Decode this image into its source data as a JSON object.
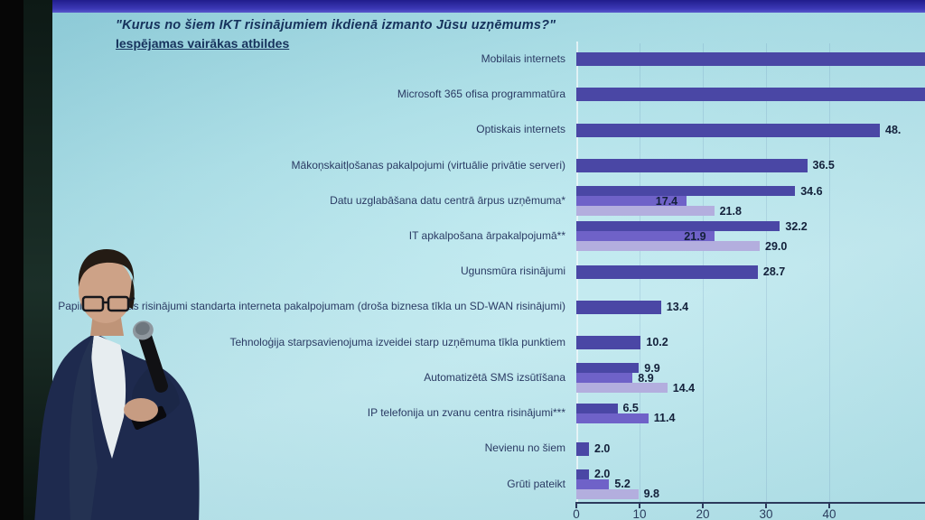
{
  "slide": {
    "title": "\"Kurus no šiem IKT risinājumiem ikdienā izmanto Jūsu uzņēmums?\"",
    "subtitle": "Iespējamas vairākas atbildes"
  },
  "chart_data": {
    "type": "bar",
    "orientation": "horizontal",
    "title": "\"Kurus no šiem IKT risinājumiem ikdienā izmanto Jūsu uzņēmums?\"",
    "subtitle": "Iespējamas vairākas atbildes",
    "xlim": [
      0,
      50
    ],
    "x_ticks": [
      0,
      10,
      20,
      30,
      40
    ],
    "legend": "none visible",
    "grid": "faint vertical lines at ticks",
    "series_colors": {
      "dark": "#4a47a5",
      "medium": "#6f62c8",
      "light": "#b3aede"
    },
    "rows": [
      {
        "label": "Mobilais internets",
        "bars": [
          {
            "series": "dark",
            "value": null,
            "display": "",
            "clipped_offscreen": true
          }
        ]
      },
      {
        "label": "Microsoft 365 ofisa programmatūra",
        "bars": [
          {
            "series": "dark",
            "value": null,
            "display": "",
            "clipped_offscreen": true
          }
        ]
      },
      {
        "label": "Optiskais internets",
        "bars": [
          {
            "series": "dark",
            "value": 48,
            "display": "48."
          }
        ]
      },
      {
        "label": "Mākoņskaitļošanas pakalpojumi (virtuālie privātie serveri)",
        "bars": [
          {
            "series": "dark",
            "value": 36.5,
            "display": "36.5"
          }
        ]
      },
      {
        "label": "Datu uzglabāšana datu centrā ārpus uzņēmuma*",
        "bars": [
          {
            "series": "dark",
            "value": 34.6,
            "display": "34.6"
          },
          {
            "series": "medium",
            "value": 17.4,
            "display": "17.4",
            "label_on_bar": true
          },
          {
            "series": "light",
            "value": 21.8,
            "display": "21.8"
          }
        ]
      },
      {
        "label": "IT apkalpošana ārpakalpojumā**",
        "bars": [
          {
            "series": "dark",
            "value": 32.2,
            "display": "32.2"
          },
          {
            "series": "medium",
            "value": 21.9,
            "display": "21.9",
            "label_on_bar": true
          },
          {
            "series": "light",
            "value": 29.0,
            "display": "29.0"
          }
        ]
      },
      {
        "label": "Ugunsmūra risinājumi",
        "bars": [
          {
            "series": "dark",
            "value": 28.7,
            "display": "28.7"
          }
        ]
      },
      {
        "label": "Papildu drošības risinājumi standarta interneta pakalpojumam (droša biznesa tīkla un SD-WAN risinājumi)",
        "bars": [
          {
            "series": "dark",
            "value": 13.4,
            "display": "13.4"
          }
        ]
      },
      {
        "label": "Tehnoloģija starpsavienojuma izveidei starp uzņēmuma tīkla punktiem",
        "bars": [
          {
            "series": "dark",
            "value": 10.2,
            "display": "10.2"
          }
        ]
      },
      {
        "label": "Automatizētā SMS izsūtīšana",
        "bars": [
          {
            "series": "dark",
            "value": 9.9,
            "display": "9.9"
          },
          {
            "series": "medium",
            "value": 8.9,
            "display": "8.9"
          },
          {
            "series": "light",
            "value": 14.4,
            "display": "14.4"
          }
        ]
      },
      {
        "label": "IP telefonija un zvanu centra risinājumi***",
        "bars": [
          {
            "series": "dark",
            "value": 6.5,
            "display": "6.5"
          },
          {
            "series": "medium",
            "value": 11.4,
            "display": "11.4"
          }
        ]
      },
      {
        "label": "Nevienu no šiem",
        "bars": [
          {
            "series": "dark",
            "value": 2.0,
            "display": "2.0"
          }
        ]
      },
      {
        "label": "Grūti pateikt",
        "bars": [
          {
            "series": "dark",
            "value": 2.0,
            "display": "2.0"
          },
          {
            "series": "medium",
            "value": 5.2,
            "display": "5.2"
          },
          {
            "series": "light",
            "value": 9.8,
            "display": "9.8"
          }
        ]
      }
    ]
  },
  "scene": {
    "presenter_icon": "presenter-silhouette-with-microphone"
  }
}
